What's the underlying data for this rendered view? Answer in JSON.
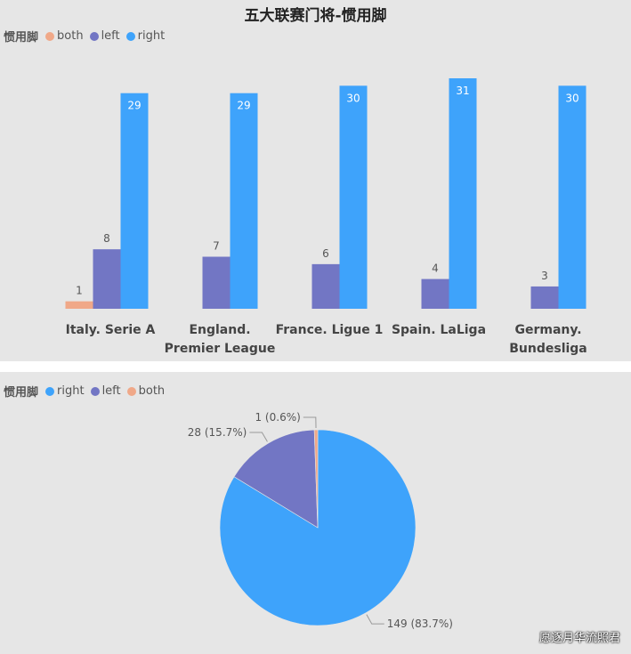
{
  "colors": {
    "both": "#f0a888",
    "left": "#7276c4",
    "right": "#3ea3fb"
  },
  "watermark": "愿逐月华流照君",
  "chart_data": [
    {
      "type": "bar",
      "title": "五大联赛门将-惯用脚",
      "legend_title": "惯用脚",
      "legend_placement": "top-left",
      "categories": [
        [
          "Italy. Serie A"
        ],
        [
          "England.",
          "Premier League"
        ],
        [
          "France. Ligue 1"
        ],
        [
          "Spain. LaLiga"
        ],
        [
          "Germany.",
          "Bundesliga"
        ]
      ],
      "series": [
        {
          "name": "both",
          "values": [
            1,
            0,
            0,
            0,
            0
          ]
        },
        {
          "name": "left",
          "values": [
            8,
            7,
            6,
            4,
            3
          ]
        },
        {
          "name": "right",
          "values": [
            29,
            29,
            30,
            31,
            30
          ]
        }
      ],
      "ylim": [
        0,
        31
      ]
    },
    {
      "type": "pie",
      "legend_title": "惯用脚",
      "legend_placement": "top-left",
      "slices": [
        {
          "name": "right",
          "value": 149,
          "label": "149 (83.7%)"
        },
        {
          "name": "left",
          "value": 28,
          "label": "28 (15.7%)"
        },
        {
          "name": "both",
          "value": 1,
          "label": "1 (0.6%)"
        }
      ]
    }
  ]
}
